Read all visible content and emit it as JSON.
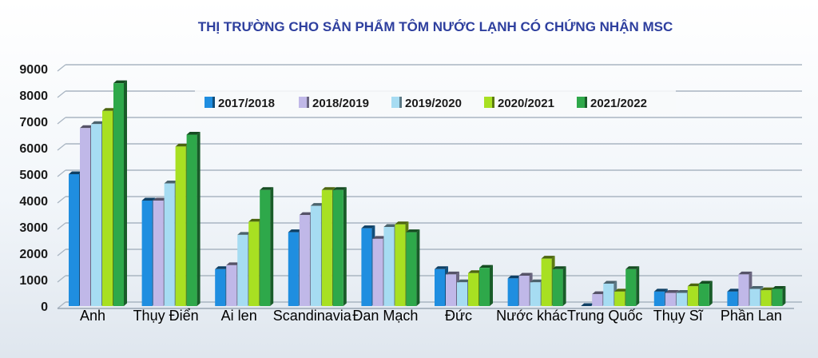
{
  "chart_data": {
    "type": "bar",
    "title": "THỊ TRƯỜNG CHO SẢN PHẨM TÔM NƯỚC LẠNH CÓ CHỨNG NHẬN MSC",
    "xlabel": "",
    "ylabel": "",
    "ylim": [
      0,
      9000
    ],
    "yticks": [
      "0",
      "1000",
      "2000",
      "3000",
      "4000",
      "5000",
      "6000",
      "7000",
      "8000",
      "9000"
    ],
    "grid": true,
    "legend_position": "top-right",
    "categories": [
      "Anh",
      "Thụy Điển",
      "Ai len",
      "Scandinavia",
      "Đan Mạch",
      "Đức",
      "Nước khác",
      "Trung Quốc",
      "Thụy Sĩ",
      "Phần Lan"
    ],
    "series": [
      {
        "name": "2017/2018",
        "color": "#1f8ee0",
        "values": [
          5000,
          4000,
          1400,
          2800,
          2950,
          1400,
          1050,
          0,
          550,
          550
        ]
      },
      {
        "name": "2018/2019",
        "color": "#c0b8e8",
        "values": [
          6750,
          4000,
          1550,
          3450,
          2550,
          1200,
          1150,
          450,
          500,
          1200
        ]
      },
      {
        "name": "2019/2020",
        "color": "#a6dcf2",
        "values": [
          6900,
          4650,
          2700,
          3800,
          3000,
          900,
          900,
          850,
          500,
          650
        ]
      },
      {
        "name": "2020/2021",
        "color": "#a8e022",
        "values": [
          7400,
          6050,
          3200,
          4400,
          3100,
          1250,
          1800,
          550,
          750,
          600
        ]
      },
      {
        "name": "2021/2022",
        "color": "#2ea84a",
        "values": [
          8450,
          6500,
          4400,
          4400,
          2800,
          1450,
          1400,
          1400,
          850,
          650
        ]
      }
    ]
  }
}
